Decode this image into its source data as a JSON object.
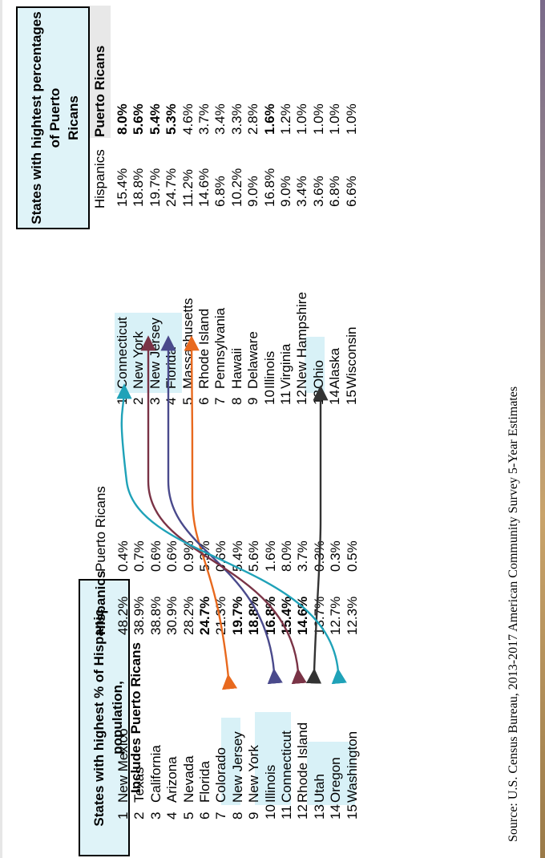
{
  "left_table": {
    "title_line1": "States with highest % of Hispanic population,",
    "title_line2": "Includes Puerto Ricans",
    "col_hispanics": "Hispanics",
    "col_pr": "Puerto Ricans",
    "rows": [
      {
        "rank": "1",
        "state": "New Mexico",
        "hispanics": "48.2%",
        "pr": "0.4%"
      },
      {
        "rank": "2",
        "state": "Texas",
        "hispanics": "38.9%",
        "pr": "0.7%"
      },
      {
        "rank": "3",
        "state": "California",
        "hispanics": "38.8%",
        "pr": "0.6%"
      },
      {
        "rank": "4",
        "state": "Arizona",
        "hispanics": "30.9%",
        "pr": "0.6%"
      },
      {
        "rank": "5",
        "state": "Nevada",
        "hispanics": "28.2%",
        "pr": "0.9%"
      },
      {
        "rank": "6",
        "state": "Florida",
        "hispanics": "24.7%",
        "pr": "5.3%"
      },
      {
        "rank": "7",
        "state": "Colorado",
        "hispanics": "21.3%",
        "pr": "0.6%"
      },
      {
        "rank": "8",
        "state": "New Jersey",
        "hispanics": "19.7%",
        "pr": "5.4%"
      },
      {
        "rank": "9",
        "state": "New York",
        "hispanics": "18.8%",
        "pr": "5.6%"
      },
      {
        "rank": "10",
        "state": "Illinois",
        "hispanics": "16.8%",
        "pr": "1.6%"
      },
      {
        "rank": "11",
        "state": "Connecticut",
        "hispanics": "15.4%",
        "pr": "8.0%"
      },
      {
        "rank": "12",
        "state": "Rhode Island",
        "hispanics": "14.6%",
        "pr": "3.7%"
      },
      {
        "rank": "13",
        "state": "Utah",
        "hispanics": "13.7%",
        "pr": "0.3%"
      },
      {
        "rank": "14",
        "state": "Oregon",
        "hispanics": "12.7%",
        "pr": "0.3%"
      },
      {
        "rank": "15",
        "state": "Washington",
        "hispanics": "12.3%",
        "pr": "0.5%"
      }
    ]
  },
  "right_table": {
    "title_line1": "States with hightest percentages of Puerto",
    "title_line2": "Ricans",
    "col_hispanics": "Hispanics",
    "col_pr": "Puerto Ricans",
    "rows": [
      {
        "rank": "1",
        "state": "Connecticut",
        "hispanics": "15.4%",
        "pr": "8.0%"
      },
      {
        "rank": "2",
        "state": "New York",
        "hispanics": "18.8%",
        "pr": "5.6%"
      },
      {
        "rank": "3",
        "state": "New Jersey",
        "hispanics": "19.7%",
        "pr": "5.4%"
      },
      {
        "rank": "4",
        "state": "Florida",
        "hispanics": "24.7%",
        "pr": "5.3%"
      },
      {
        "rank": "5",
        "state": "Massachusetts",
        "hispanics": "11.2%",
        "pr": "4.6%"
      },
      {
        "rank": "6",
        "state": "Rhode Island",
        "hispanics": "14.6%",
        "pr": "3.7%"
      },
      {
        "rank": "7",
        "state": "Pennsylvania",
        "hispanics": "6.8%",
        "pr": "3.4%"
      },
      {
        "rank": "8",
        "state": "Hawaii",
        "hispanics": "10.2%",
        "pr": "3.3%"
      },
      {
        "rank": "9",
        "state": "Delaware",
        "hispanics": "9.0%",
        "pr": "2.8%"
      },
      {
        "rank": "10",
        "state": "Illinois",
        "hispanics": "16.8%",
        "pr": "1.6%"
      },
      {
        "rank": "11",
        "state": "Virginia",
        "hispanics": "9.0%",
        "pr": "1.2%"
      },
      {
        "rank": "12",
        "state": "New Hampshire",
        "hispanics": "3.4%",
        "pr": "1.0%"
      },
      {
        "rank": "13",
        "state": "Ohio",
        "hispanics": "3.6%",
        "pr": "1.0%"
      },
      {
        "rank": "14",
        "state": "Alaska",
        "hispanics": "6.8%",
        "pr": "1.0%"
      },
      {
        "rank": "15",
        "state": "Wisconsin",
        "hispanics": "6.6%",
        "pr": "1.0%"
      }
    ]
  },
  "source": "Source: U.S. Census Bureau, 2013-2017 American Community Survey 5-Year Estimates",
  "colors": {
    "florida_arrow": "#e8691e",
    "new_jersey_arrow": "#4a4a8c",
    "new_york_arrow": "#7a3346",
    "illinois_arrow": "#333333",
    "connecticut_arrow": "#1fa2b8",
    "highlight": "#d8f1f7"
  }
}
